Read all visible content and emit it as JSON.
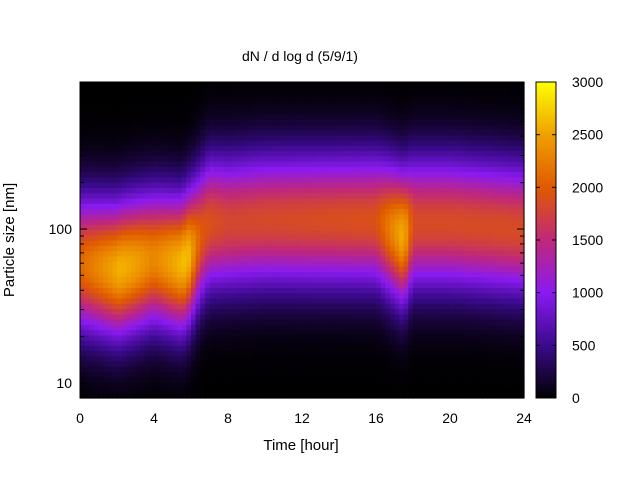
{
  "chart_data": {
    "type": "heatmap",
    "title": "dN / d log d (5/9/1)",
    "xlabel": "Time [hour]",
    "ylabel": "Particle size [nm]",
    "xlim": [
      0,
      24
    ],
    "ylim": [
      8,
      900
    ],
    "yscale": "log",
    "x_ticks": [
      0,
      4,
      8,
      12,
      16,
      20,
      24
    ],
    "y_ticks": [
      10,
      100
    ],
    "colorbar": {
      "range": [
        0,
        3000
      ],
      "ticks": [
        0,
        500,
        1000,
        1500,
        2000,
        2500,
        3000
      ],
      "colormap": "gnuplot-pm3d",
      "stops": [
        {
          "v": 0,
          "color": "#000000"
        },
        {
          "v": 500,
          "color": "#3a0a8c"
        },
        {
          "v": 1000,
          "color": "#8a1af0"
        },
        {
          "v": 1500,
          "color": "#c0287a"
        },
        {
          "v": 2000,
          "color": "#e05a00"
        },
        {
          "v": 2500,
          "color": "#f0a000"
        },
        {
          "v": 3000,
          "color": "#ffff00"
        }
      ]
    },
    "mode_diameter_nm": {
      "hours": [
        0,
        2,
        4,
        5.5,
        6,
        7,
        8,
        10,
        12,
        16,
        17.5,
        18,
        20,
        22,
        24
      ],
      "values": [
        60,
        55,
        65,
        60,
        70,
        110,
        110,
        115,
        115,
        115,
        90,
        110,
        110,
        105,
        100
      ]
    },
    "peak_concentration": {
      "hours": [
        0,
        2.2,
        3,
        4,
        5.8,
        6.5,
        7,
        8,
        12,
        16,
        17.5,
        18,
        20,
        24
      ],
      "values": [
        2100,
        2600,
        2500,
        2300,
        2700,
        2000,
        1900,
        1800,
        1850,
        1900,
        2600,
        1850,
        1850,
        1850
      ]
    },
    "grid": false,
    "legend": "none"
  }
}
